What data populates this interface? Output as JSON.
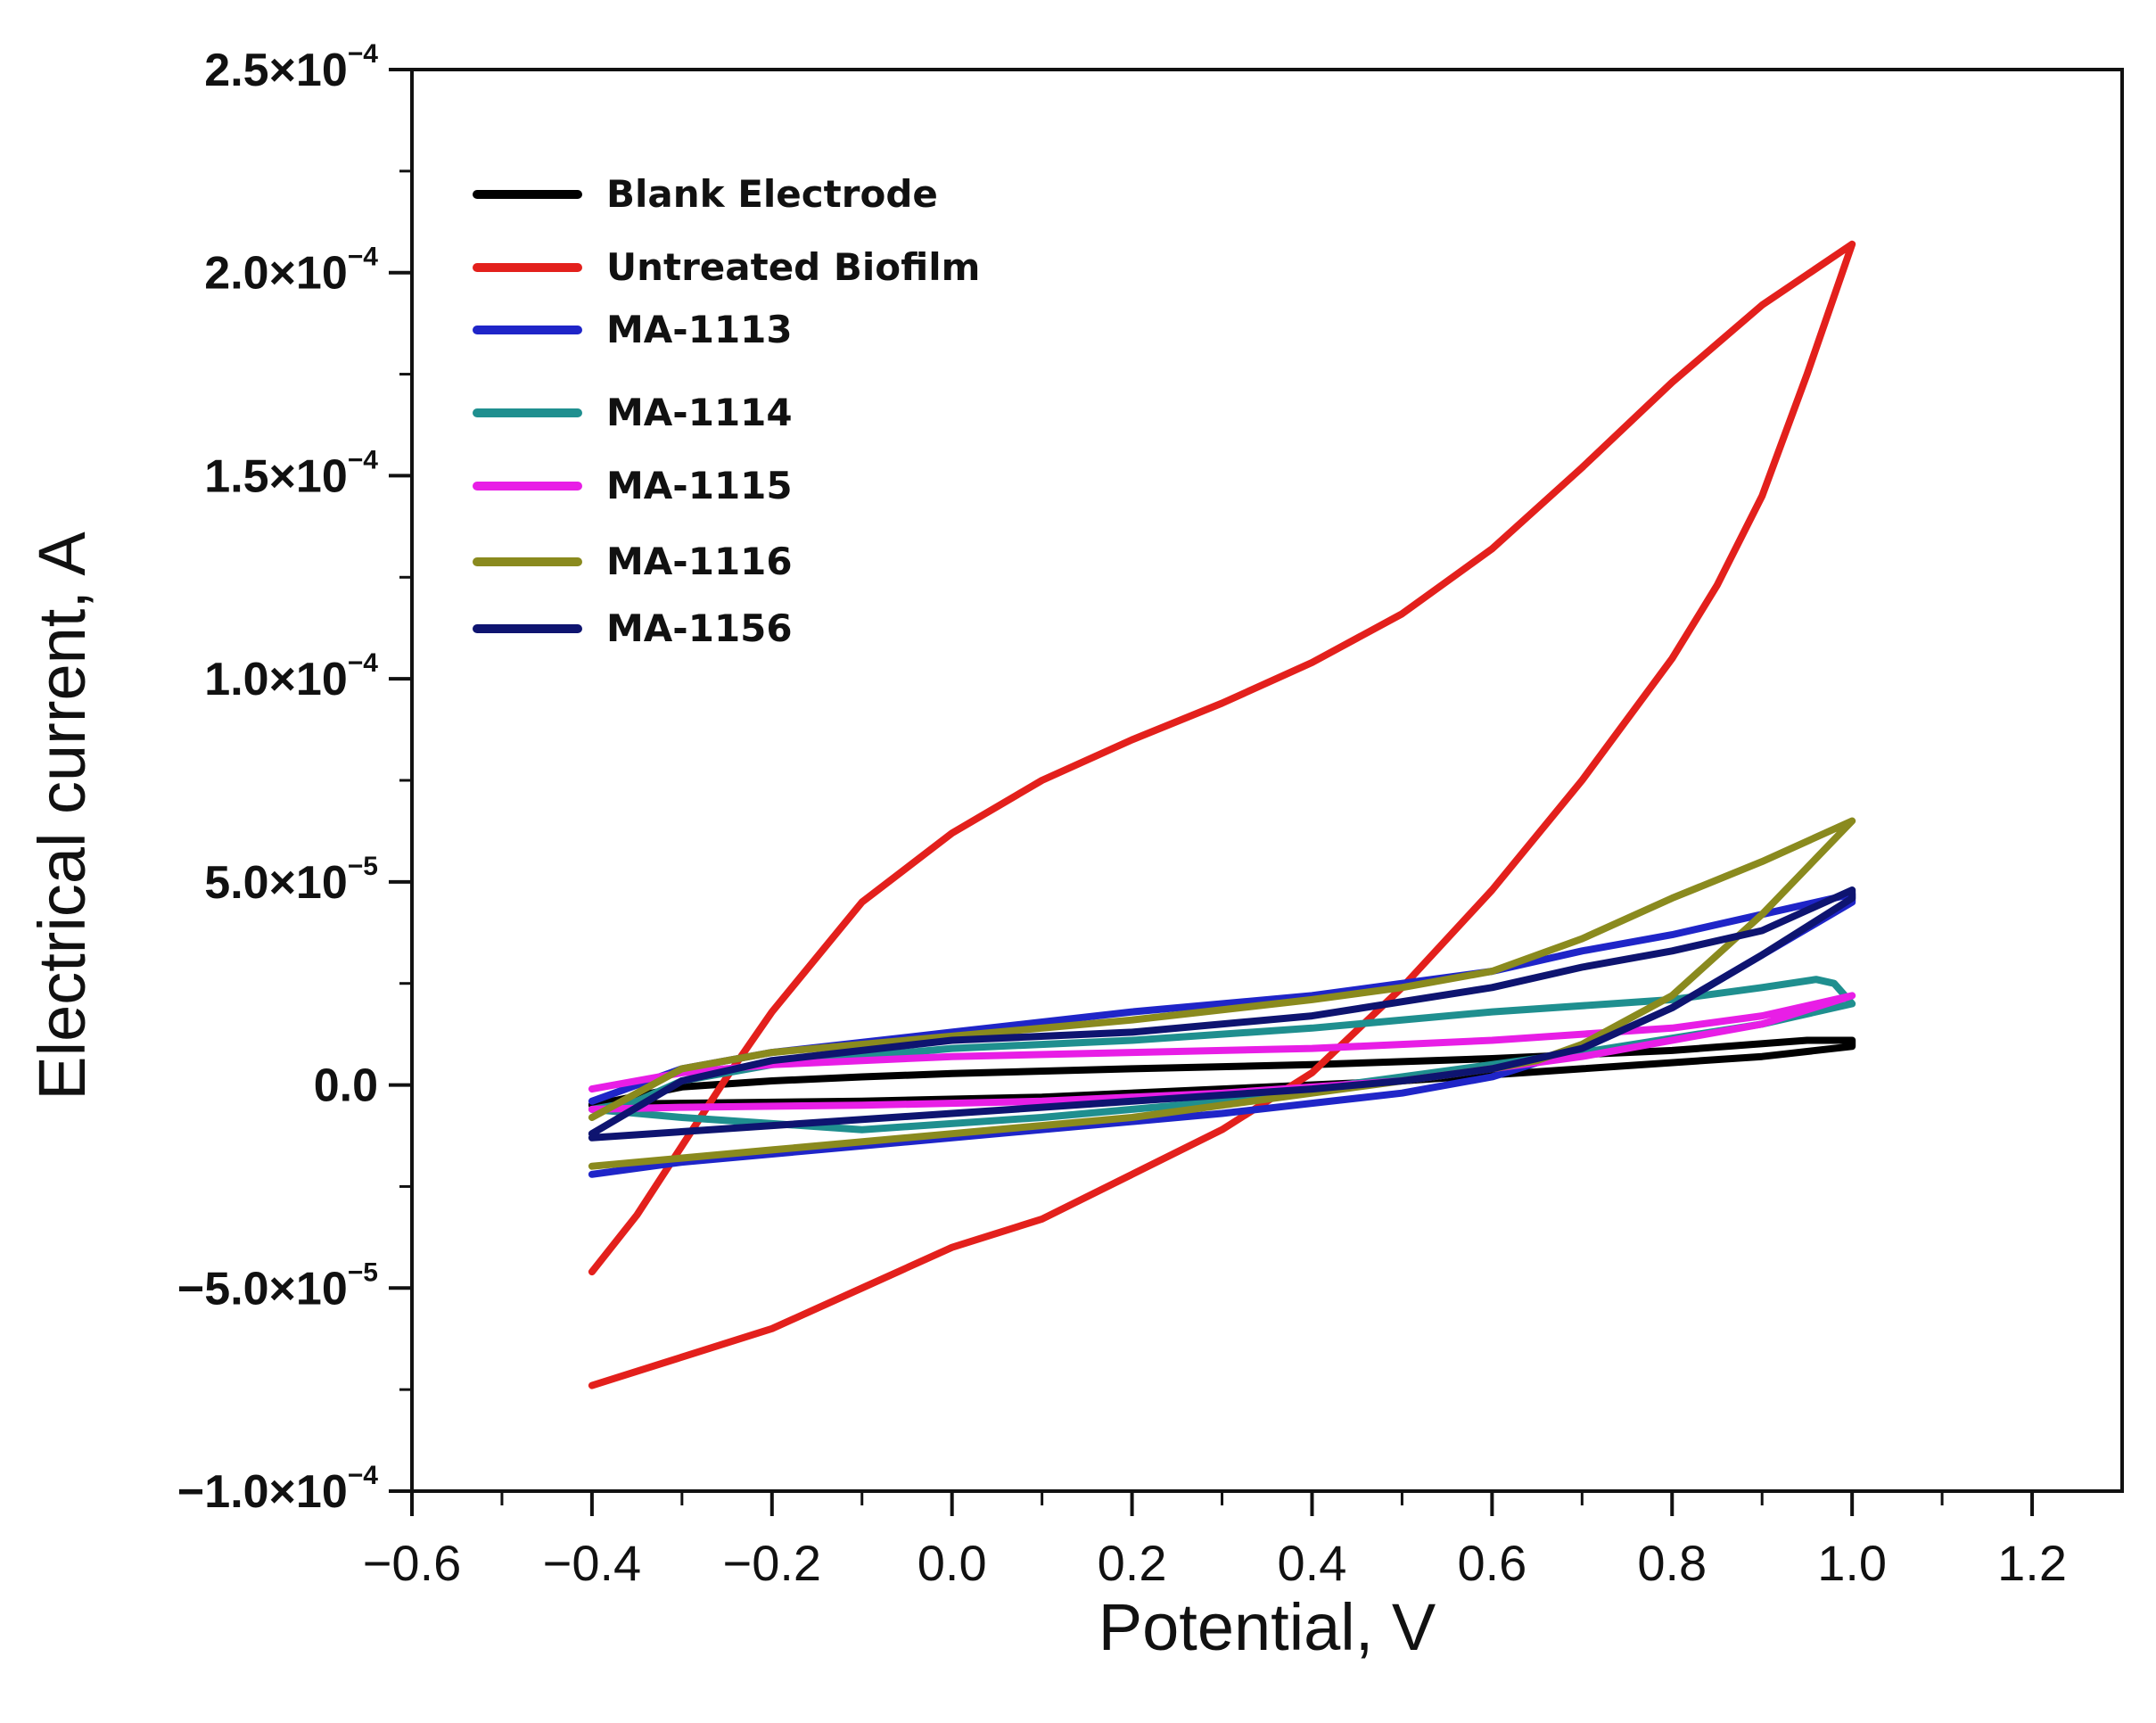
{
  "chart_data": {
    "type": "line",
    "title": "",
    "xlabel": "Potential, V",
    "ylabel": "Electrical current, A",
    "xlim": [
      -0.6,
      1.3
    ],
    "ylim": [
      -0.0001,
      0.00025
    ],
    "xticks": [
      -0.6,
      -0.4,
      -0.2,
      0.0,
      0.2,
      0.4,
      0.6,
      0.8,
      1.0,
      1.2
    ],
    "xtick_labels": [
      "−0.6",
      "−0.4",
      "−0.2",
      "0.0",
      "0.2",
      "0.4",
      "0.6",
      "0.8",
      "1.0",
      "1.2"
    ],
    "yticks": [
      {
        "value": -0.0001,
        "mantissa": "−1.0×10",
        "exp": "−4"
      },
      {
        "value": -5e-05,
        "mantissa": "−5.0×10",
        "exp": "−5"
      },
      {
        "value": 0,
        "mantissa": "0.0",
        "exp": ""
      },
      {
        "value": 5e-05,
        "mantissa": "5.0×10",
        "exp": "−5"
      },
      {
        "value": 0.0001,
        "mantissa": "1.0×10",
        "exp": "−4"
      },
      {
        "value": 0.00015,
        "mantissa": "1.5×10",
        "exp": "−4"
      },
      {
        "value": 0.0002,
        "mantissa": "2.0×10",
        "exp": "−4"
      },
      {
        "value": 0.00025,
        "mantissa": "2.5×10",
        "exp": "−4"
      }
    ],
    "grid": false,
    "legend_position": "top-left",
    "series": [
      {
        "name": "Blank Electrode",
        "color": "#000000",
        "x": [
          -0.4,
          -0.3,
          -0.2,
          -0.1,
          0.0,
          0.2,
          0.4,
          0.6,
          0.8,
          0.95,
          1.0,
          1.0,
          0.9,
          0.7,
          0.5,
          0.3,
          0.1,
          -0.1,
          -0.3,
          -0.4
        ],
        "y": [
          -5e-06,
          -5e-07,
          1e-06,
          2e-06,
          2.8e-06,
          4e-06,
          5e-06,
          6.5e-06,
          8.5e-06,
          1.1e-05,
          1.1e-05,
          9.5e-06,
          7e-06,
          4e-06,
          1e-06,
          -1e-06,
          -3e-06,
          -4e-06,
          -4.5e-06,
          -4.8e-06
        ]
      },
      {
        "name": "Untreated Biofilm",
        "color": "#e3201c",
        "x": [
          -0.4,
          -0.35,
          -0.3,
          -0.25,
          -0.2,
          -0.1,
          0.0,
          0.1,
          0.2,
          0.3,
          0.4,
          0.5,
          0.6,
          0.7,
          0.8,
          0.9,
          1.0,
          0.95,
          0.9,
          0.85,
          0.8,
          0.7,
          0.6,
          0.5,
          0.4,
          0.3,
          0.2,
          0.1,
          0.0,
          -0.1,
          -0.2,
          -0.3,
          -0.4
        ],
        "y": [
          -4.6e-05,
          -3.2e-05,
          -1.5e-05,
          2e-06,
          1.8e-05,
          4.5e-05,
          6.2e-05,
          7.5e-05,
          8.5e-05,
          9.4e-05,
          0.000104,
          0.000116,
          0.000132,
          0.000152,
          0.000173,
          0.000192,
          0.000207,
          0.000175,
          0.000145,
          0.000123,
          0.000105,
          7.5e-05,
          4.8e-05,
          2.4e-05,
          3e-06,
          -1.1e-05,
          -2.2e-05,
          -3.3e-05,
          -4e-05,
          -5e-05,
          -6e-05,
          -6.7e-05,
          -7.4e-05
        ]
      },
      {
        "name": "MA-1113",
        "color": "#1f25c8",
        "x": [
          -0.4,
          -0.3,
          -0.2,
          0.0,
          0.2,
          0.4,
          0.5,
          0.6,
          0.7,
          0.8,
          0.9,
          1.0,
          1.0,
          0.9,
          0.8,
          0.7,
          0.6,
          0.5,
          0.3,
          0.1,
          -0.1,
          -0.3,
          -0.4
        ],
        "y": [
          -4e-06,
          4e-06,
          8e-06,
          1.3e-05,
          1.8e-05,
          2.2e-05,
          2.5e-05,
          2.8e-05,
          3.3e-05,
          3.7e-05,
          4.2e-05,
          4.7e-05,
          4.5e-05,
          3.2e-05,
          1.9e-05,
          9e-06,
          2e-06,
          -2e-06,
          -7e-06,
          -1.1e-05,
          -1.5e-05,
          -1.9e-05,
          -2.2e-05
        ]
      },
      {
        "name": "MA-1114",
        "color": "#1f8f8f",
        "x": [
          -0.4,
          -0.35,
          -0.3,
          -0.2,
          0.0,
          0.2,
          0.4,
          0.6,
          0.8,
          0.9,
          0.96,
          0.98,
          1.0,
          0.9,
          0.7,
          0.5,
          0.3,
          0.1,
          -0.1,
          -0.3,
          -0.4
        ],
        "y": [
          -6e-06,
          -4e-06,
          1e-06,
          5e-06,
          9e-06,
          1.1e-05,
          1.4e-05,
          1.8e-05,
          2.1e-05,
          2.4e-05,
          2.6e-05,
          2.5e-05,
          2e-05,
          1.5e-05,
          8e-06,
          2e-06,
          -4e-06,
          -8e-06,
          -1.1e-05,
          -8e-06,
          -6e-06
        ]
      },
      {
        "name": "MA-1115",
        "color": "#e81ee6",
        "x": [
          -0.4,
          -0.3,
          -0.2,
          0.0,
          0.2,
          0.4,
          0.6,
          0.8,
          0.9,
          1.0,
          1.0,
          0.9,
          0.7,
          0.5,
          0.3,
          0.1,
          -0.1,
          -0.3,
          -0.4
        ],
        "y": [
          -1e-06,
          3e-06,
          5e-06,
          7e-06,
          8e-06,
          9e-06,
          1.1e-05,
          1.4e-05,
          1.7e-05,
          2.2e-05,
          2.2e-05,
          1.5e-05,
          7e-06,
          1e-06,
          -2e-06,
          -4e-06,
          -5e-06,
          -5.5e-06,
          -6e-06
        ]
      },
      {
        "name": "MA-1116",
        "color": "#8a8a1e",
        "x": [
          -0.4,
          -0.3,
          -0.2,
          0.0,
          0.2,
          0.4,
          0.5,
          0.6,
          0.7,
          0.8,
          0.9,
          1.0,
          0.9,
          0.8,
          0.7,
          0.65,
          0.6,
          0.5,
          0.4,
          0.2,
          0.0,
          -0.2,
          -0.4
        ],
        "y": [
          -8e-06,
          4e-06,
          8e-06,
          1.2e-05,
          1.6e-05,
          2.1e-05,
          2.4e-05,
          2.8e-05,
          3.6e-05,
          4.6e-05,
          5.5e-05,
          6.5e-05,
          4.2e-05,
          2.2e-05,
          1e-05,
          6e-06,
          4e-06,
          1e-06,
          -2e-06,
          -8e-06,
          -1.2e-05,
          -1.6e-05,
          -2e-05
        ]
      },
      {
        "name": "MA-1156",
        "color": "#0e1470",
        "x": [
          -0.4,
          -0.3,
          -0.2,
          0.0,
          0.2,
          0.4,
          0.6,
          0.7,
          0.8,
          0.9,
          1.0,
          1.0,
          0.9,
          0.8,
          0.7,
          0.6,
          0.5,
          0.4,
          0.2,
          0.0,
          -0.2,
          -0.4
        ],
        "y": [
          -1.2e-05,
          1e-06,
          6e-06,
          1.1e-05,
          1.3e-05,
          1.7e-05,
          2.4e-05,
          2.9e-05,
          3.3e-05,
          3.8e-05,
          4.8e-05,
          4.6e-05,
          3.2e-05,
          1.9e-05,
          9e-06,
          4e-06,
          1e-06,
          -1e-06,
          -4e-06,
          -7e-06,
          -1e-05,
          -1.3e-05
        ]
      }
    ]
  }
}
